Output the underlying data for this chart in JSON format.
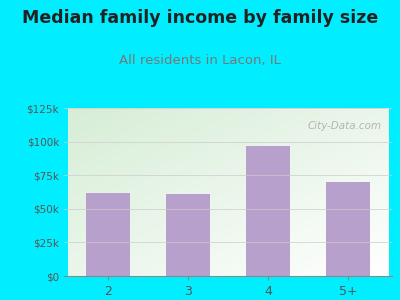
{
  "title": "Median family income by family size",
  "subtitle": "All residents in Lacon, IL",
  "categories": [
    "2",
    "3",
    "4",
    "5+"
  ],
  "values": [
    62000,
    61000,
    97000,
    70000
  ],
  "bar_color": "#b8a0cc",
  "title_fontsize": 12.5,
  "subtitle_fontsize": 9.5,
  "title_color": "#222222",
  "subtitle_color": "#777777",
  "tick_label_color": "#555555",
  "background_outer": "#00eeff",
  "plot_bg_top_left": "#d8eed8",
  "plot_bg_bottom_right": "#ffffff",
  "ylim": [
    0,
    125000
  ],
  "yticks": [
    0,
    25000,
    50000,
    75000,
    100000,
    125000
  ],
  "ytick_labels": [
    "$0",
    "$25k",
    "$50k",
    "$75k",
    "$100k",
    "$125k"
  ],
  "watermark": "City-Data.com",
  "watermark_color": "#aaaaaa"
}
